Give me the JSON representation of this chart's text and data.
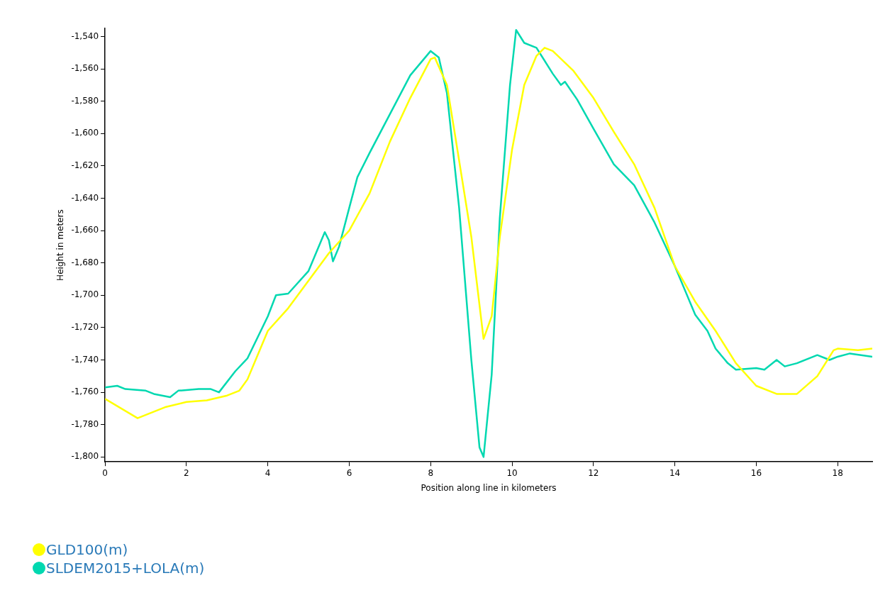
{
  "chart_data": {
    "type": "line",
    "xlabel": "Position along line in kilometers",
    "ylabel": "Height in meters",
    "xlim": [
      0,
      18.85
    ],
    "xticks": [
      0,
      2,
      4,
      6,
      8,
      10,
      12,
      14,
      16,
      18
    ],
    "ylim": [
      -1803,
      -1535
    ],
    "yticks": [
      {
        "value": -1800,
        "label": "-1,800"
      },
      {
        "value": -1780,
        "label": "-1,780"
      },
      {
        "value": -1760,
        "label": "-1,760"
      },
      {
        "value": -1740,
        "label": "-1,740"
      },
      {
        "value": -1720,
        "label": "-1,720"
      },
      {
        "value": -1700,
        "label": "-1,700"
      },
      {
        "value": -1680,
        "label": "-1,680"
      },
      {
        "value": -1660,
        "label": "-1,660"
      },
      {
        "value": -1640,
        "label": "-1,640"
      },
      {
        "value": -1620,
        "label": "-1,620"
      },
      {
        "value": -1600,
        "label": "-1,600"
      },
      {
        "value": -1580,
        "label": "-1,580"
      },
      {
        "value": -1560,
        "label": "-1,560"
      },
      {
        "value": -1540,
        "label": "-1,540"
      }
    ],
    "grid": false,
    "legend": "bottom left",
    "marker": "none",
    "line_style": "solid",
    "series": [
      {
        "name": "GLD100(m)",
        "color": "#ffff00",
        "x": [
          0,
          0.8,
          1.5,
          2,
          2.5,
          3,
          3.3,
          3.5,
          4,
          4.5,
          5,
          5.5,
          6,
          6.5,
          7,
          7.5,
          8,
          8.1,
          8.4,
          8.6,
          9,
          9.3,
          9.5,
          9.7,
          10,
          10.3,
          10.6,
          10.8,
          11,
          11.5,
          12,
          12.5,
          13,
          13.5,
          14,
          14.5,
          15,
          15.5,
          16,
          16.5,
          17,
          17.5,
          17.9,
          18,
          18.5,
          18.85
        ],
        "values": [
          -1764,
          -1776,
          -1769,
          -1766,
          -1765,
          -1762,
          -1759,
          -1752,
          -1722,
          -1708,
          -1691,
          -1674,
          -1660,
          -1637,
          -1605,
          -1578,
          -1554,
          -1553,
          -1570,
          -1601,
          -1664,
          -1727,
          -1713,
          -1664,
          -1610,
          -1570,
          -1552,
          -1547,
          -1549,
          -1561,
          -1578,
          -1599,
          -1619,
          -1646,
          -1682,
          -1704,
          -1722,
          -1742,
          -1756,
          -1761,
          -1761,
          -1750,
          -1734,
          -1733,
          -1734,
          -1733
        ]
      },
      {
        "name": "SLDEM2015+LOLA(m)",
        "color": "#00d8b0",
        "x": [
          0,
          0.3,
          0.5,
          1,
          1.2,
          1.6,
          1.8,
          2.3,
          2.6,
          2.8,
          3.2,
          3.5,
          4,
          4.2,
          4.5,
          5,
          5.4,
          5.5,
          5.6,
          5.75,
          6,
          6.2,
          6.5,
          7,
          7.5,
          8,
          8.2,
          8.4,
          8.7,
          9,
          9.2,
          9.3,
          9.5,
          9.7,
          9.95,
          10.1,
          10.3,
          10.6,
          11,
          11.2,
          11.3,
          11.6,
          12,
          12.5,
          13,
          13.5,
          14,
          14.2,
          14.5,
          14.8,
          15,
          15.3,
          15.5,
          16,
          16.2,
          16.5,
          16.7,
          17,
          17.5,
          17.8,
          18,
          18.3,
          18.85
        ],
        "values": [
          -1757,
          -1756,
          -1758,
          -1759,
          -1761,
          -1763,
          -1759,
          -1758,
          -1758,
          -1760,
          -1747,
          -1739,
          -1713,
          -1700,
          -1699,
          -1685,
          -1661,
          -1666,
          -1679,
          -1670,
          -1646,
          -1627,
          -1612,
          -1588,
          -1564,
          -1549,
          -1553,
          -1575,
          -1646,
          -1740,
          -1794,
          -1800,
          -1749,
          -1652,
          -1570,
          -1536,
          -1544,
          -1547,
          -1563,
          -1570,
          -1568,
          -1579,
          -1597,
          -1619,
          -1632,
          -1655,
          -1682,
          -1694,
          -1712,
          -1722,
          -1733,
          -1742,
          -1746,
          -1745,
          -1746,
          -1740,
          -1744,
          -1742,
          -1737,
          -1740,
          -1738,
          -1736,
          -1738
        ]
      }
    ]
  }
}
